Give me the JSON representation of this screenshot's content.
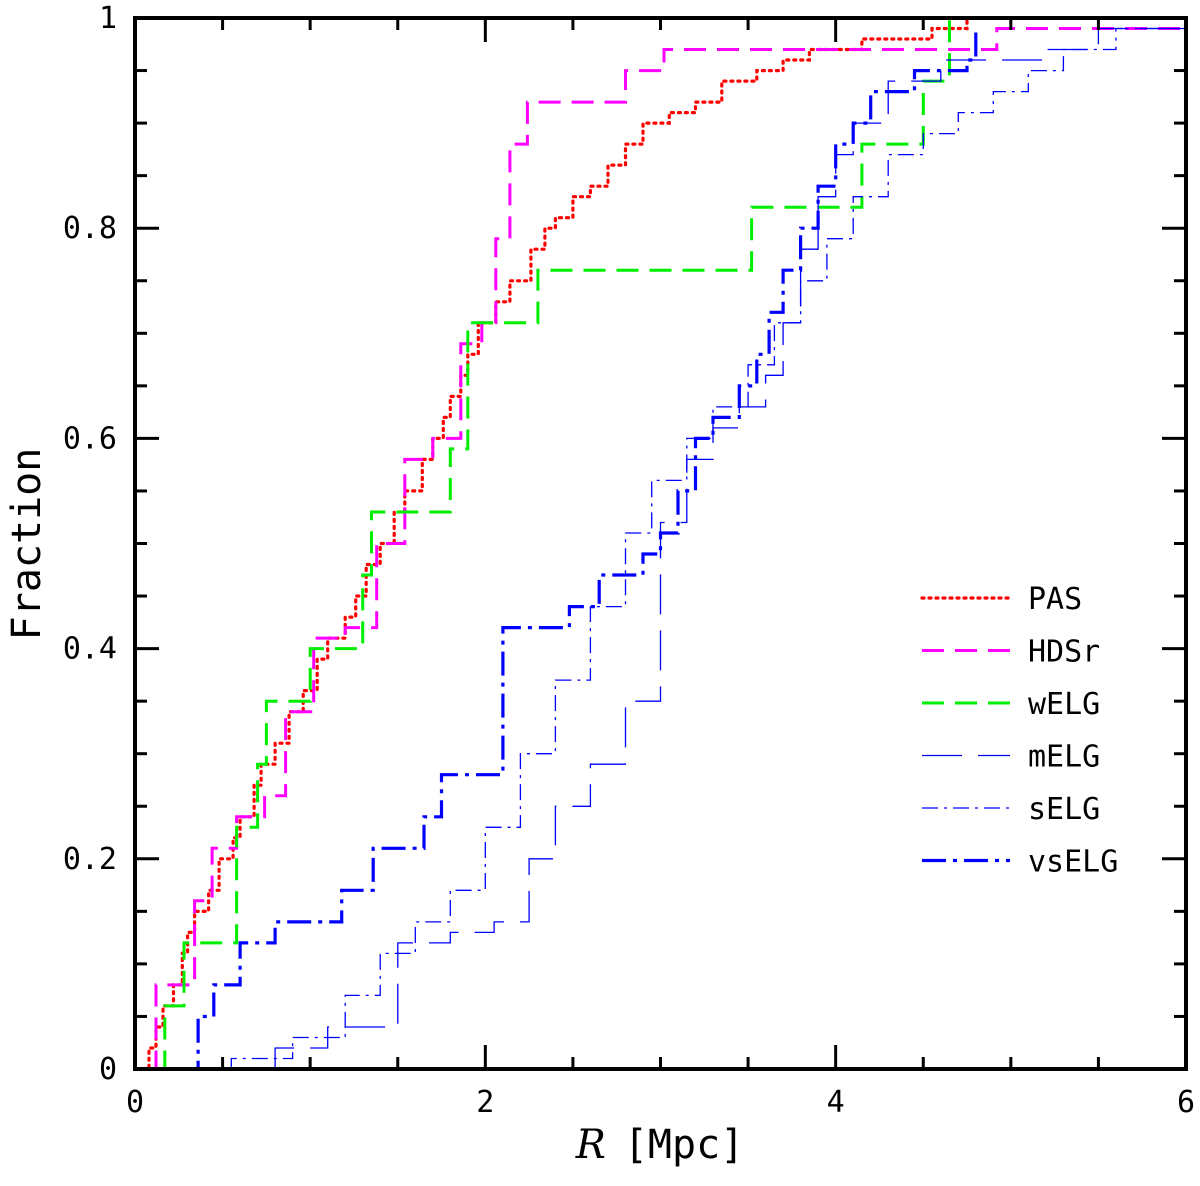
{
  "chart_data": {
    "type": "line",
    "subtype": "cumulative-step",
    "xlabel_italic": "R",
    "xlabel_unit": "[Mpc]",
    "ylabel": "Fraction",
    "xlim": [
      0,
      6
    ],
    "ylim": [
      0,
      1
    ],
    "x_ticks": [
      0,
      2,
      4,
      6
    ],
    "x_tick_labels": [
      "0",
      "2",
      "4",
      "6"
    ],
    "y_ticks": [
      0,
      0.2,
      0.4,
      0.6,
      0.8,
      1
    ],
    "y_tick_labels": [
      "0",
      "0.2",
      "0.4",
      "0.6",
      "0.8",
      "1"
    ],
    "grid": false,
    "legend_position": "right",
    "series": [
      {
        "name": "PAS",
        "color": "#ff0000",
        "style": "dotted",
        "points": [
          [
            0.05,
            0
          ],
          [
            0.08,
            0.02
          ],
          [
            0.12,
            0.04
          ],
          [
            0.16,
            0.06
          ],
          [
            0.22,
            0.08
          ],
          [
            0.27,
            0.11
          ],
          [
            0.3,
            0.13
          ],
          [
            0.34,
            0.15
          ],
          [
            0.42,
            0.17
          ],
          [
            0.48,
            0.2
          ],
          [
            0.56,
            0.22
          ],
          [
            0.6,
            0.24
          ],
          [
            0.68,
            0.27
          ],
          [
            0.72,
            0.29
          ],
          [
            0.8,
            0.31
          ],
          [
            0.88,
            0.34
          ],
          [
            0.96,
            0.36
          ],
          [
            1.04,
            0.39
          ],
          [
            1.1,
            0.41
          ],
          [
            1.2,
            0.43
          ],
          [
            1.26,
            0.45
          ],
          [
            1.32,
            0.48
          ],
          [
            1.4,
            0.5
          ],
          [
            1.48,
            0.53
          ],
          [
            1.54,
            0.55
          ],
          [
            1.64,
            0.58
          ],
          [
            1.7,
            0.6
          ],
          [
            1.76,
            0.62
          ],
          [
            1.8,
            0.64
          ],
          [
            1.86,
            0.66
          ],
          [
            1.9,
            0.68
          ],
          [
            1.96,
            0.71
          ],
          [
            2.06,
            0.73
          ],
          [
            2.14,
            0.75
          ],
          [
            2.26,
            0.78
          ],
          [
            2.34,
            0.8
          ],
          [
            2.4,
            0.81
          ],
          [
            2.5,
            0.83
          ],
          [
            2.6,
            0.84
          ],
          [
            2.7,
            0.86
          ],
          [
            2.8,
            0.88
          ],
          [
            2.9,
            0.9
          ],
          [
            3.05,
            0.91
          ],
          [
            3.2,
            0.92
          ],
          [
            3.35,
            0.94
          ],
          [
            3.55,
            0.95
          ],
          [
            3.7,
            0.96
          ],
          [
            3.85,
            0.97
          ],
          [
            4.0,
            0.97
          ],
          [
            4.15,
            0.98
          ],
          [
            4.4,
            0.98
          ],
          [
            4.55,
            0.99
          ],
          [
            4.75,
            1.0
          ],
          [
            5.5,
            1.0
          ]
        ]
      },
      {
        "name": "HDSr",
        "color": "#ff00ff",
        "style": "dashed",
        "points": [
          [
            0.1,
            0
          ],
          [
            0.12,
            0.08
          ],
          [
            0.22,
            0.08
          ],
          [
            0.34,
            0.16
          ],
          [
            0.44,
            0.21
          ],
          [
            0.58,
            0.24
          ],
          [
            0.74,
            0.26
          ],
          [
            0.86,
            0.34
          ],
          [
            1.02,
            0.41
          ],
          [
            1.2,
            0.42
          ],
          [
            1.38,
            0.5
          ],
          [
            1.54,
            0.58
          ],
          [
            1.7,
            0.6
          ],
          [
            1.86,
            0.69
          ],
          [
            1.98,
            0.71
          ],
          [
            2.06,
            0.79
          ],
          [
            2.14,
            0.88
          ],
          [
            2.24,
            0.92
          ],
          [
            2.8,
            0.95
          ],
          [
            3.02,
            0.97
          ],
          [
            4.6,
            0.97
          ],
          [
            4.92,
            0.99
          ],
          [
            6.0,
            0.99
          ]
        ]
      },
      {
        "name": "wELG",
        "color": "#00ee00",
        "style": "dashed",
        "points": [
          [
            0.15,
            0
          ],
          [
            0.17,
            0.06
          ],
          [
            0.28,
            0.12
          ],
          [
            0.58,
            0.23
          ],
          [
            0.7,
            0.29
          ],
          [
            0.75,
            0.35
          ],
          [
            1.0,
            0.4
          ],
          [
            1.3,
            0.47
          ],
          [
            1.35,
            0.53
          ],
          [
            1.8,
            0.59
          ],
          [
            1.9,
            0.71
          ],
          [
            2.3,
            0.76
          ],
          [
            3.52,
            0.82
          ],
          [
            4.15,
            0.88
          ],
          [
            4.5,
            0.94
          ],
          [
            4.65,
            1.0
          ],
          [
            4.7,
            1.0
          ]
        ]
      },
      {
        "name": "mELG",
        "color": "#0000ff",
        "style": "long-dash-thin",
        "points": [
          [
            0.8,
            0
          ],
          [
            0.8,
            0.02
          ],
          [
            1.1,
            0.04
          ],
          [
            1.5,
            0.12
          ],
          [
            1.8,
            0.13
          ],
          [
            2.05,
            0.14
          ],
          [
            2.25,
            0.2
          ],
          [
            2.4,
            0.25
          ],
          [
            2.6,
            0.29
          ],
          [
            2.8,
            0.35
          ],
          [
            3.0,
            0.52
          ],
          [
            3.15,
            0.58
          ],
          [
            3.3,
            0.61
          ],
          [
            3.45,
            0.63
          ],
          [
            3.6,
            0.66
          ],
          [
            3.7,
            0.71
          ],
          [
            3.8,
            0.78
          ],
          [
            3.9,
            0.83
          ],
          [
            4.0,
            0.87
          ],
          [
            4.1,
            0.9
          ],
          [
            4.3,
            0.94
          ],
          [
            4.6,
            0.96
          ],
          [
            5.2,
            0.97
          ],
          [
            5.5,
            0.99
          ],
          [
            6.0,
            0.99
          ]
        ]
      },
      {
        "name": "sELG",
        "color": "#0000ff",
        "style": "dash-dot-thin",
        "points": [
          [
            0.55,
            0
          ],
          [
            0.55,
            0.01
          ],
          [
            0.9,
            0.03
          ],
          [
            1.2,
            0.07
          ],
          [
            1.4,
            0.11
          ],
          [
            1.6,
            0.14
          ],
          [
            1.8,
            0.17
          ],
          [
            2.0,
            0.23
          ],
          [
            2.2,
            0.3
          ],
          [
            2.4,
            0.37
          ],
          [
            2.6,
            0.44
          ],
          [
            2.8,
            0.51
          ],
          [
            2.95,
            0.56
          ],
          [
            3.15,
            0.6
          ],
          [
            3.3,
            0.63
          ],
          [
            3.5,
            0.67
          ],
          [
            3.65,
            0.71
          ],
          [
            3.8,
            0.75
          ],
          [
            3.95,
            0.79
          ],
          [
            4.1,
            0.83
          ],
          [
            4.3,
            0.87
          ],
          [
            4.5,
            0.89
          ],
          [
            4.7,
            0.91
          ],
          [
            4.9,
            0.93
          ],
          [
            5.1,
            0.95
          ],
          [
            5.3,
            0.97
          ],
          [
            5.6,
            0.99
          ],
          [
            6.0,
            0.99
          ]
        ]
      },
      {
        "name": "vsELG",
        "color": "#0000ff",
        "style": "dash-dot-thick",
        "points": [
          [
            0.27,
            0
          ],
          [
            0.36,
            0.05
          ],
          [
            0.45,
            0.08
          ],
          [
            0.6,
            0.12
          ],
          [
            0.8,
            0.14
          ],
          [
            1.18,
            0.17
          ],
          [
            1.36,
            0.21
          ],
          [
            1.65,
            0.24
          ],
          [
            1.75,
            0.28
          ],
          [
            2.1,
            0.42
          ],
          [
            2.48,
            0.44
          ],
          [
            2.65,
            0.47
          ],
          [
            2.9,
            0.49
          ],
          [
            3.0,
            0.51
          ],
          [
            3.1,
            0.55
          ],
          [
            3.2,
            0.6
          ],
          [
            3.3,
            0.62
          ],
          [
            3.45,
            0.65
          ],
          [
            3.55,
            0.68
          ],
          [
            3.62,
            0.72
          ],
          [
            3.7,
            0.76
          ],
          [
            3.8,
            0.8
          ],
          [
            3.9,
            0.84
          ],
          [
            4.0,
            0.88
          ],
          [
            4.1,
            0.9
          ],
          [
            4.2,
            0.93
          ],
          [
            4.45,
            0.95
          ],
          [
            4.75,
            0.96
          ],
          [
            4.8,
            0.99
          ]
        ]
      }
    ]
  }
}
